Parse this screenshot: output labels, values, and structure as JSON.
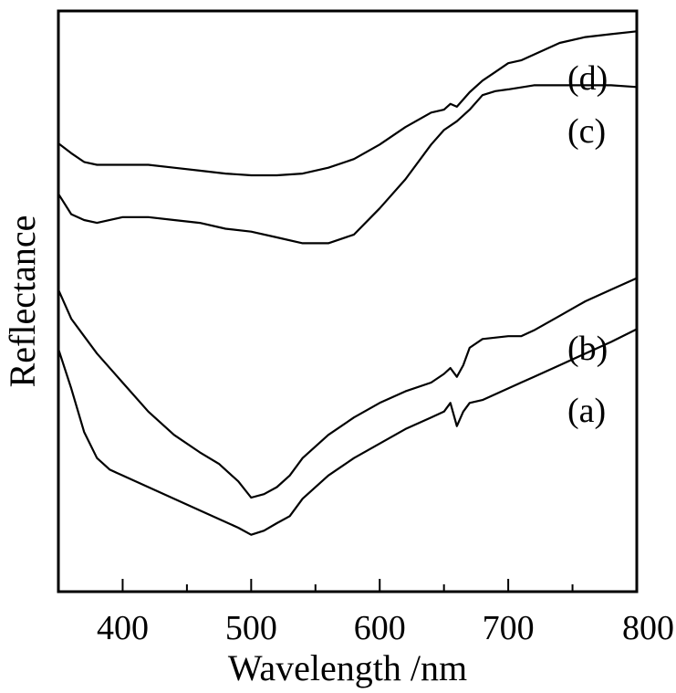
{
  "chart_data": {
    "type": "line",
    "title": "",
    "xlabel": "Wavelength /nm",
    "ylabel": "Reflectance",
    "xlim": [
      350,
      800
    ],
    "ylim": [
      0,
      1
    ],
    "x_ticks": [
      400,
      500,
      600,
      700,
      800
    ],
    "x_tick_labels": [
      "400",
      "500",
      "600",
      "700",
      "800"
    ],
    "y_ticks_shown": false,
    "grid": false,
    "legend": "none",
    "series": [
      {
        "name": "(a)",
        "x": [
          350,
          360,
          370,
          380,
          390,
          400,
          420,
          440,
          460,
          475,
          490,
          500,
          510,
          520,
          530,
          540,
          560,
          580,
          600,
          620,
          640,
          650,
          655,
          660,
          665,
          670,
          680,
          690,
          700,
          710,
          720,
          740,
          760,
          780,
          800
        ],
        "y": [
          0.418,
          0.35,
          0.275,
          0.23,
          0.21,
          0.2,
          0.18,
          0.16,
          0.14,
          0.125,
          0.11,
          0.098,
          0.105,
          0.118,
          0.13,
          0.16,
          0.2,
          0.23,
          0.255,
          0.28,
          0.3,
          0.31,
          0.325,
          0.285,
          0.31,
          0.325,
          0.33,
          0.34,
          0.35,
          0.36,
          0.37,
          0.39,
          0.41,
          0.43,
          0.452
        ]
      },
      {
        "name": "(b)",
        "x": [
          350,
          360,
          370,
          380,
          400,
          420,
          440,
          460,
          475,
          490,
          500,
          510,
          520,
          530,
          540,
          560,
          580,
          600,
          620,
          640,
          650,
          655,
          660,
          665,
          670,
          680,
          700,
          710,
          720,
          740,
          760,
          780,
          800
        ],
        "y": [
          0.52,
          0.47,
          0.44,
          0.41,
          0.36,
          0.31,
          0.27,
          0.24,
          0.22,
          0.19,
          0.162,
          0.168,
          0.18,
          0.2,
          0.23,
          0.27,
          0.3,
          0.325,
          0.345,
          0.36,
          0.375,
          0.385,
          0.37,
          0.39,
          0.42,
          0.435,
          0.44,
          0.44,
          0.45,
          0.475,
          0.5,
          0.52,
          0.54
        ]
      },
      {
        "name": "(c)",
        "x": [
          350,
          360,
          370,
          380,
          400,
          420,
          440,
          460,
          480,
          500,
          520,
          540,
          560,
          580,
          600,
          620,
          640,
          650,
          660,
          670,
          680,
          690,
          700,
          720,
          740,
          760,
          780,
          800
        ],
        "y": [
          0.685,
          0.65,
          0.64,
          0.635,
          0.645,
          0.645,
          0.64,
          0.635,
          0.625,
          0.62,
          0.61,
          0.6,
          0.6,
          0.615,
          0.66,
          0.71,
          0.77,
          0.795,
          0.81,
          0.83,
          0.855,
          0.862,
          0.865,
          0.872,
          0.872,
          0.872,
          0.872,
          0.869
        ]
      },
      {
        "name": "(d)",
        "x": [
          350,
          360,
          370,
          380,
          400,
          420,
          440,
          460,
          480,
          500,
          520,
          540,
          560,
          580,
          600,
          620,
          640,
          650,
          655,
          660,
          670,
          680,
          690,
          700,
          710,
          720,
          740,
          760,
          780,
          800
        ],
        "y": [
          0.772,
          0.755,
          0.74,
          0.735,
          0.735,
          0.735,
          0.73,
          0.725,
          0.72,
          0.717,
          0.717,
          0.72,
          0.73,
          0.745,
          0.77,
          0.8,
          0.825,
          0.83,
          0.84,
          0.835,
          0.86,
          0.88,
          0.895,
          0.91,
          0.915,
          0.925,
          0.945,
          0.955,
          0.96,
          0.965
        ]
      }
    ],
    "annotations": [
      "(d)",
      "(c)",
      "(b)",
      "(a)"
    ]
  }
}
